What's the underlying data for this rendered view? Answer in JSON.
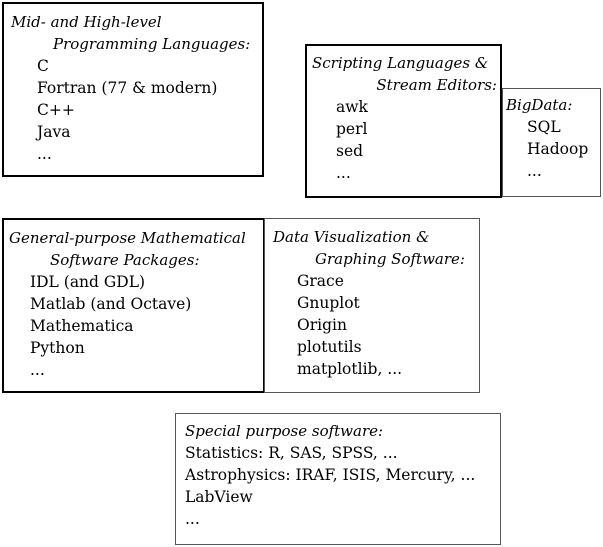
{
  "boxes": {
    "programming": {
      "title_line1": "Mid- and High-level",
      "title_line2": "Programming Languages:",
      "items": [
        "C",
        "Fortran (77 & modern)",
        "C++",
        "Java",
        "..."
      ]
    },
    "scripting": {
      "title_line1": "Scripting Languages &",
      "title_line2": "Stream Editors:",
      "items": [
        "awk",
        "perl",
        "sed",
        "..."
      ]
    },
    "bigdata": {
      "title_line1": "BigData:",
      "items": [
        "SQL",
        "Hadoop",
        "..."
      ]
    },
    "math": {
      "title_line1": "General-purpose Mathematical",
      "title_line2": "Software Packages:",
      "items": [
        "IDL (and GDL)",
        "Matlab (and Octave)",
        "Mathematica",
        "Python",
        "..."
      ]
    },
    "visualization": {
      "title_line1": "Data Visualization &",
      "title_line2": "Graphing Software:",
      "items": [
        "Grace",
        "Gnuplot",
        "Origin",
        "plotutils",
        "matplotlib, ..."
      ]
    },
    "special": {
      "title_line1": "Special purpose software:",
      "items": [
        "Statistics: R, SAS, SPSS, ...",
        "Astrophysics: IRAF, ISIS, Mercury, ...",
        "LabView",
        "..."
      ]
    }
  }
}
